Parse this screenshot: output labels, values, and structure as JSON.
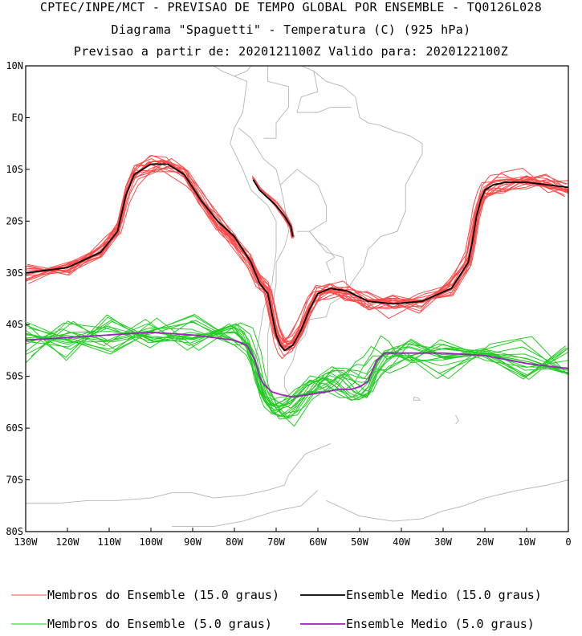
{
  "chart_data": {
    "type": "line",
    "title": "CPTEC/INPE/MCT - PREVISAO DE TEMPO GLOBAL POR ENSEMBLE - TQ0126L028",
    "subtitle": "Diagrama \"Spaguetti\" - Temperatura (C) (925 hPa)",
    "subtitle2": "Previsao a partir de: 2020121100Z  Valido para: 2020122100Z",
    "xlabel": "",
    "ylabel": "",
    "xlim": [
      -130,
      0
    ],
    "ylim": [
      -80,
      10
    ],
    "x_tick_labels": [
      "130W",
      "120W",
      "110W",
      "100W",
      "90W",
      "80W",
      "70W",
      "60W",
      "50W",
      "40W",
      "30W",
      "20W",
      "10W",
      "0"
    ],
    "x_ticks": [
      -130,
      -120,
      -110,
      -100,
      -90,
      -80,
      -70,
      -60,
      -50,
      -40,
      -30,
      -20,
      -10,
      0
    ],
    "y_tick_labels": [
      "10N",
      "EQ",
      "10S",
      "20S",
      "30S",
      "40S",
      "50S",
      "60S",
      "70S",
      "80S"
    ],
    "y_ticks": [
      10,
      0,
      -10,
      -20,
      -30,
      -40,
      -50,
      -60,
      -70,
      -80
    ],
    "grid": false,
    "legend_placement": "bottom",
    "colors": {
      "member15": "#ff4a4a",
      "mean15": "#000000",
      "member5": "#22cc22",
      "mean5": "#a020c0",
      "coast": "#b4b4b4"
    },
    "legend": [
      {
        "label": "Membros do Ensemble (15.0 graus)",
        "color": "#ff4a4a"
      },
      {
        "label": "Ensemble Medio (15.0 graus)",
        "color": "#000000"
      },
      {
        "label": "Membros do Ensemble (5.0 graus)",
        "color": "#22cc22"
      },
      {
        "label": "Ensemble Medio (5.0 graus)",
        "color": "#a020c0"
      }
    ],
    "series": [
      {
        "name": "Ensemble Medio (15.0 graus)",
        "lon": [
          -130,
          -120,
          -112,
          -108,
          -106,
          -104,
          -100,
          -96,
          -92,
          -88,
          -84,
          -80,
          -76,
          -74,
          -72,
          -71,
          -70,
          -69,
          -68,
          -66,
          -64,
          -62,
          -60,
          -57,
          -53,
          -48,
          -42,
          -35,
          -28,
          -24,
          -23,
          -22,
          -21,
          -20,
          -18,
          -15,
          -10,
          -5,
          0
        ],
        "lat": [
          -30,
          -29,
          -26,
          -22,
          -15,
          -11,
          -9,
          -9,
          -11,
          -16,
          -20,
          -23,
          -28,
          -32,
          -34,
          -38,
          -42,
          -44,
          -45,
          -44,
          -41,
          -37,
          -34,
          -33,
          -33.5,
          -35.5,
          -36,
          -35.5,
          -33,
          -28,
          -24,
          -19,
          -16,
          -14,
          -13,
          -12.5,
          -12.5,
          -13,
          -13.5
        ]
      },
      {
        "name": "Ensemble Medio (15.0 graus)",
        "lon": [
          -75.5,
          -74,
          -72,
          -70,
          -68,
          -66.5,
          -66
        ],
        "lat": [
          -12,
          -14,
          -15.5,
          -17,
          -19,
          -21,
          -23
        ]
      },
      {
        "name": "Ensemble Medio (5.0 graus)",
        "lon": [
          -130,
          -120,
          -110,
          -100,
          -90,
          -80,
          -77,
          -75,
          -74,
          -73,
          -71,
          -69,
          -66,
          -62,
          -58,
          -55,
          -52,
          -50,
          -48,
          -46,
          -44,
          -42,
          -38,
          -30,
          -20,
          -10,
          0
        ],
        "lat": [
          -43,
          -42.5,
          -42,
          -41.5,
          -42,
          -43,
          -44,
          -47,
          -50,
          -51.5,
          -53,
          -53.5,
          -54,
          -53.5,
          -53,
          -52.5,
          -52.5,
          -52,
          -51,
          -47,
          -45.5,
          -45.5,
          -45.5,
          -45.5,
          -46,
          -47.5,
          -48.5
        ]
      }
    ]
  }
}
